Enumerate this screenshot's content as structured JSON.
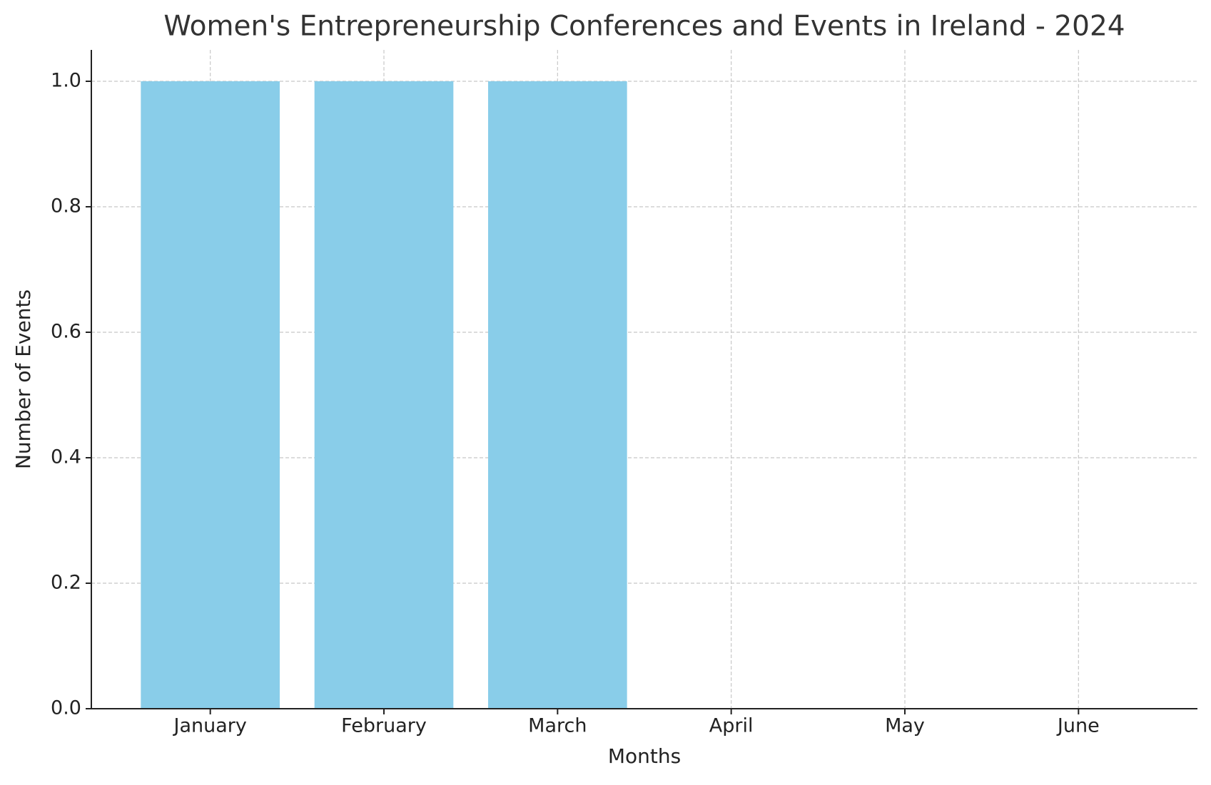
{
  "chart_data": {
    "type": "bar",
    "title": "Women's Entrepreneurship Conferences and Events in Ireland - 2024",
    "x_label": "Months",
    "y_label": "Number of Events",
    "categories": [
      "January",
      "February",
      "March",
      "April",
      "May",
      "June"
    ],
    "values": [
      1,
      1,
      1,
      0,
      0,
      0
    ],
    "color": "#89cde9",
    "ylim": [
      0,
      1.05
    ],
    "yticks": [
      {
        "value": 0,
        "label": "0.0"
      },
      {
        "value": 0.2,
        "label": "0.2"
      },
      {
        "value": 0.4,
        "label": "0.4"
      },
      {
        "value": 0.6,
        "label": "0.6"
      },
      {
        "value": 0.8,
        "label": "0.8"
      },
      {
        "value": 1,
        "label": "1.0"
      }
    ],
    "grid": true
  }
}
